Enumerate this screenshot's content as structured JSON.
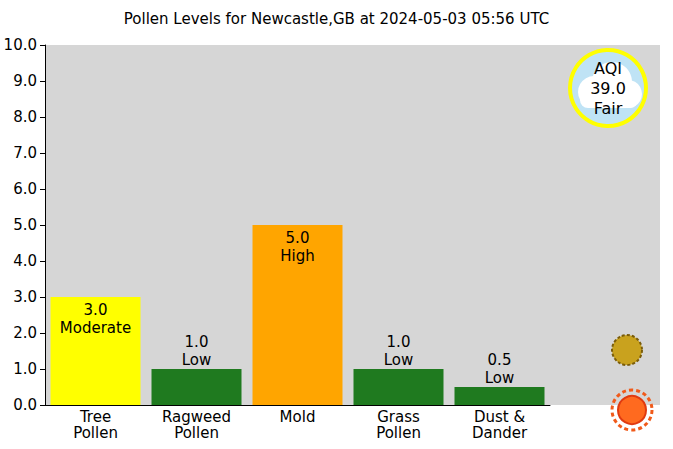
{
  "chart_data": {
    "type": "bar",
    "title": "Pollen Levels for Newcastle,GB at 2024-05-03 05:56 UTC",
    "categories": [
      "Tree\nPollen",
      "Ragweed\nPollen",
      "Mold",
      "Grass\nPollen",
      "Dust &\nDander"
    ],
    "values": [
      3.0,
      1.0,
      5.0,
      1.0,
      0.5
    ],
    "value_labels": [
      "3.0\nModerate",
      "1.0\nLow",
      "5.0\nHigh",
      "1.0\nLow",
      "0.5\nLow"
    ],
    "colors": [
      "#ffff00",
      "#1f7a1f",
      "#ffa500",
      "#1f7a1f",
      "#1f7a1f"
    ],
    "ylim": [
      0,
      10
    ],
    "yticks": [
      {
        "value": 0,
        "label": "0.0"
      },
      {
        "value": 1,
        "label": "1.0"
      },
      {
        "value": 2,
        "label": "2.0"
      },
      {
        "value": 3,
        "label": "3.0"
      },
      {
        "value": 4,
        "label": "4.0"
      },
      {
        "value": 5,
        "label": "5.0"
      },
      {
        "value": 6,
        "label": "6.0"
      },
      {
        "value": 7,
        "label": "7.0"
      },
      {
        "value": 8,
        "label": "8.0"
      },
      {
        "value": 9,
        "label": "9.0"
      },
      {
        "value": 10,
        "label": "10.0"
      }
    ],
    "grid": false,
    "data_labels": true,
    "annotations": [
      {
        "text": "AQI\n39.0\nFair"
      }
    ]
  }
}
